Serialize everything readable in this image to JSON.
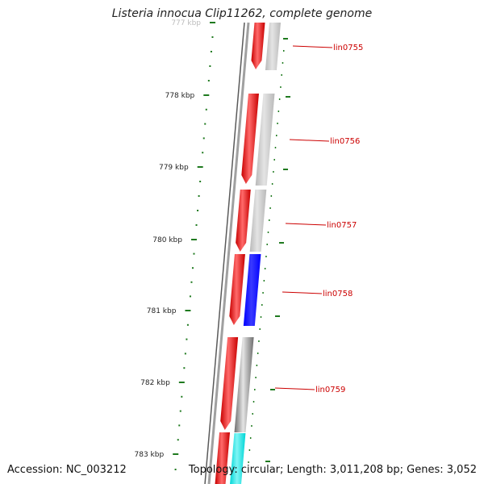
{
  "title": "Listeria innocua Clip11262, complete genome",
  "accession": "Accession: NC_003212",
  "summary": "Topology: circular; Length: 3,011,208 bp; Genes: 3,052",
  "colors": {
    "gene_forward": "#ff0000",
    "backbone": "#8a8a8a",
    "ruler": "#1f7a1f",
    "label_line": "#cc0000",
    "label_text": "#cc0000",
    "tick_label": "#222222"
  },
  "ruler_ticks": [
    {
      "label": "777 kbp"
    },
    {
      "label": "778 kbp"
    },
    {
      "label": "779 kbp"
    },
    {
      "label": "780 kbp"
    },
    {
      "label": "781 kbp"
    },
    {
      "label": "782 kbp"
    },
    {
      "label": "783 kbp"
    }
  ],
  "genes": [
    {
      "label": "lin0755",
      "feature_color": "#b9b9b9"
    },
    {
      "label": "lin0756",
      "feature_color": "#b9b9b9"
    },
    {
      "label": "lin0757",
      "feature_color": "#b9b9b9"
    },
    {
      "label": "lin0758",
      "feature_color": "#0000ff"
    },
    {
      "label": "lin0759",
      "feature_color": "#6e6e6e"
    },
    {
      "label": "",
      "feature_color": "#00d6d6"
    }
  ]
}
